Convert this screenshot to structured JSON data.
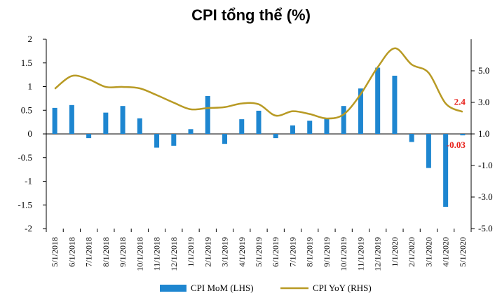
{
  "chart_data": {
    "type": "bar+line",
    "title": "CPI tổng thể (%)",
    "categories": [
      "5/1/2018",
      "6/1/2018",
      "7/1/2018",
      "8/1/2018",
      "9/1/2018",
      "10/1/2018",
      "11/1/2018",
      "12/1/2018",
      "1/1/2019",
      "2/1/2019",
      "3/1/2019",
      "4/1/2019",
      "5/1/2019",
      "6/1/2019",
      "7/1/2019",
      "8/1/2019",
      "9/1/2019",
      "10/1/2019",
      "11/1/2019",
      "12/1/2019",
      "1/1/2020",
      "2/1/2020",
      "3/1/2020",
      "4/1/2020",
      "5/1/2020"
    ],
    "series": [
      {
        "name": "CPI MoM (LHS)",
        "type": "bar",
        "axis": "left",
        "color": "#1e86d0",
        "values": [
          0.55,
          0.61,
          -0.09,
          0.45,
          0.59,
          0.33,
          -0.29,
          -0.25,
          0.1,
          0.8,
          -0.21,
          0.31,
          0.49,
          -0.09,
          0.18,
          0.28,
          0.32,
          0.59,
          0.96,
          1.4,
          1.23,
          -0.17,
          -0.72,
          -1.54,
          -0.03
        ]
      },
      {
        "name": "CPI YoY (RHS)",
        "type": "line",
        "axis": "right",
        "color": "#b89a24",
        "values": [
          3.86,
          4.67,
          4.46,
          3.98,
          3.98,
          3.89,
          3.46,
          2.98,
          2.56,
          2.64,
          2.7,
          2.93,
          2.88,
          2.16,
          2.44,
          2.26,
          1.98,
          2.24,
          3.52,
          5.23,
          6.43,
          5.4,
          4.87,
          2.93,
          2.4
        ]
      }
    ],
    "y_left": {
      "min": -2,
      "max": 2,
      "ticks": [
        -2,
        -1.5,
        -1,
        -0.5,
        0,
        0.5,
        1,
        1.5,
        2
      ],
      "tick_labels": [
        "-2",
        "-1.5",
        "-1",
        "-0.5",
        "0",
        "0.5",
        "1",
        "1.5",
        "2"
      ]
    },
    "y_right": {
      "min": -5,
      "max": 7,
      "ticks": [
        -5,
        -3,
        -1,
        1,
        3,
        5
      ],
      "tick_labels": [
        "-5.0",
        "-3.0",
        "-1.0",
        "1.0",
        "3.0",
        "5.0"
      ]
    },
    "annotations": [
      {
        "text": "2.4",
        "series": "CPI YoY (RHS)",
        "index": 24,
        "color": "#e8201a"
      },
      {
        "text": "-0.03",
        "series": "CPI MoM (LHS)",
        "index": 24,
        "color": "#e8201a"
      }
    ],
    "legend": {
      "position": "bottom"
    }
  }
}
